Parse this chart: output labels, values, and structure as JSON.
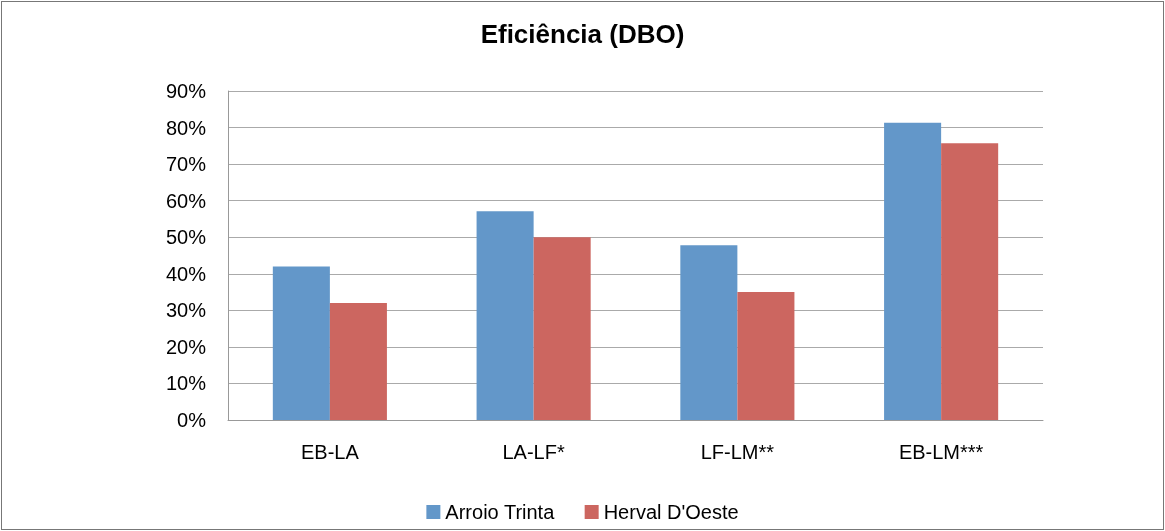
{
  "chart_data": {
    "type": "bar",
    "title": "Eficiência (DBO)",
    "categories": [
      "EB-LA",
      "LA-LF*",
      "LF-LM**",
      "EB-LM***"
    ],
    "series": [
      {
        "name": "Arroio Trinta",
        "color": "#6397c9",
        "values": [
          42,
          57.1,
          47.8,
          81.3
        ]
      },
      {
        "name": "Herval D'Oeste",
        "color": "#cc6660",
        "values": [
          32,
          50,
          35,
          75.7
        ]
      }
    ],
    "ylim": [
      0,
      90
    ],
    "yticks": [
      {
        "value": 0,
        "label": "0%"
      },
      {
        "value": 10,
        "label": "10%"
      },
      {
        "value": 20,
        "label": "20%"
      },
      {
        "value": 30,
        "label": "30%"
      },
      {
        "value": 40,
        "label": "40%"
      },
      {
        "value": 50,
        "label": "50%"
      },
      {
        "value": 60,
        "label": "60%"
      },
      {
        "value": 70,
        "label": "70%"
      },
      {
        "value": 80,
        "label": "80%"
      },
      {
        "value": 90,
        "label": "90%"
      }
    ],
    "grid": "y",
    "legend": "bottom"
  }
}
